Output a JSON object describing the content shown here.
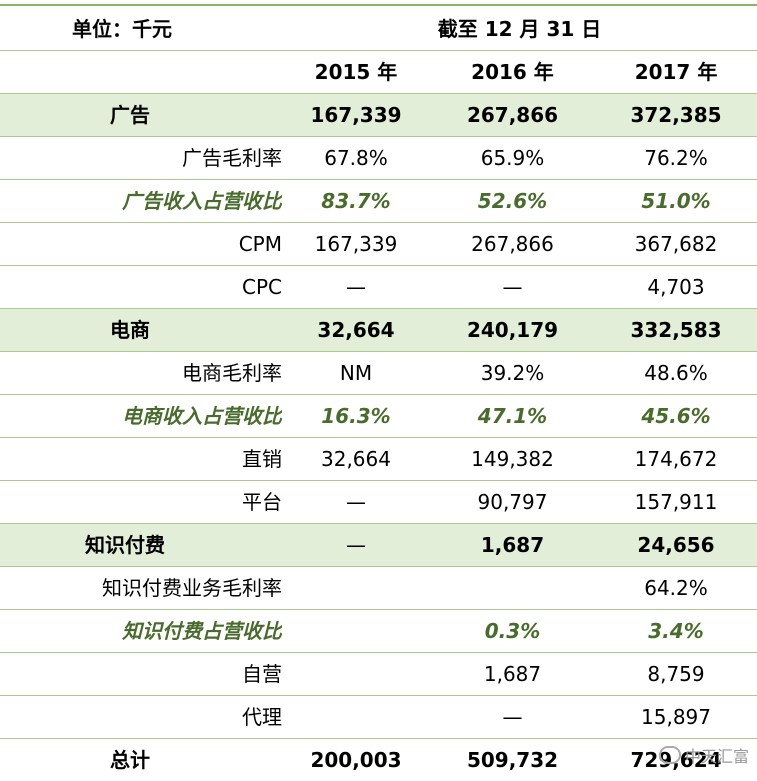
{
  "header": {
    "unit_label": "单位：千元",
    "period_label": "截至 12 月 31 日",
    "years": [
      "2015 年",
      "2016 年",
      "2017 年"
    ]
  },
  "rows": [
    {
      "label": "广告",
      "values": [
        "167,339",
        "267,866",
        "372,385"
      ]
    },
    {
      "label": "广告毛利率",
      "values": [
        "67.8%",
        "65.9%",
        "76.2%"
      ]
    },
    {
      "label": "广告收入占营收比",
      "values": [
        "83.7%",
        "52.6%",
        "51.0%"
      ]
    },
    {
      "label": "CPM",
      "values": [
        "167,339",
        "267,866",
        "367,682"
      ]
    },
    {
      "label": "CPC",
      "values": [
        "—",
        "—",
        "4,703"
      ]
    },
    {
      "label": "电商",
      "values": [
        "32,664",
        "240,179",
        "332,583"
      ]
    },
    {
      "label": "电商毛利率",
      "values": [
        "NM",
        "39.2%",
        "48.6%"
      ]
    },
    {
      "label": "电商收入占营收比",
      "values": [
        "16.3%",
        "47.1%",
        "45.6%"
      ]
    },
    {
      "label": "直销",
      "values": [
        "32,664",
        "149,382",
        "174,672"
      ]
    },
    {
      "label": "平台",
      "values": [
        "—",
        "90,797",
        "157,911"
      ]
    },
    {
      "label": "知识付费",
      "values": [
        "—",
        "1,687",
        "24,656"
      ]
    },
    {
      "label": "知识付费业务毛利率",
      "values": [
        "",
        "",
        "64.2%"
      ]
    },
    {
      "label": "知识付费占营收比",
      "values": [
        "",
        "0.3%",
        "3.4%"
      ]
    },
    {
      "label": "自营",
      "values": [
        "",
        "1,687",
        "8,759"
      ]
    },
    {
      "label": "代理",
      "values": [
        "",
        "—",
        "15,897"
      ]
    },
    {
      "label": "总计",
      "values": [
        "200,003",
        "509,732",
        "729,624"
      ]
    }
  ],
  "watermark": "中天汇富"
}
